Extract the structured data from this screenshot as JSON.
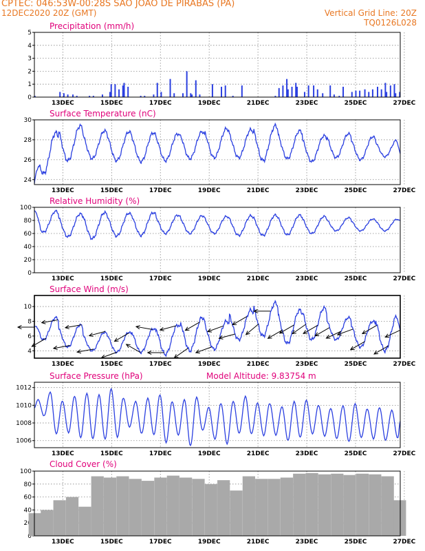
{
  "header": {
    "line1_left": "CPTEC:   046:53W-00:28S   SAO JOAO DE PIRABAS (PA)",
    "line2_left": "12DEC2020 20Z (GMT)",
    "line2_right": "Vertical Grid Line: 20Z",
    "line3_right": "TQ0126L028"
  },
  "colors": {
    "header": "#e87722",
    "title": "#e0007a",
    "line": "#2a3fe0",
    "bar": "#2a3fe0",
    "cloud": "#a9a9a9",
    "arrow": "#000000"
  },
  "x_ticks": [
    "13DEC",
    "15DEC",
    "17DEC",
    "19DEC",
    "21DEC",
    "23DEC",
    "25DEC",
    "27DEC"
  ],
  "chart_data": [
    {
      "type": "bar",
      "title": "Precipitation (mm/h)",
      "xlabel": "",
      "ylabel": "",
      "ylim": [
        0,
        5
      ],
      "yticks": [
        0,
        1,
        2,
        3,
        4,
        5
      ],
      "x": [
        "12DEC",
        "13DEC",
        "13DEC",
        "13DEC",
        "13DEC",
        "13DEC",
        "14DEC",
        "14DEC",
        "14DEC",
        "15DEC",
        "15DEC",
        "15DEC",
        "15DEC",
        "15DEC",
        "15DEC",
        "15DEC",
        "16DEC",
        "16DEC",
        "16DEC",
        "17DEC",
        "17DEC",
        "17DEC",
        "17DEC",
        "18DEC",
        "18DEC",
        "18DEC",
        "18DEC",
        "18DEC",
        "18DEC",
        "19DEC",
        "19DEC",
        "19DEC",
        "20DEC",
        "20DEC",
        "21DEC",
        "22DEC",
        "22DEC",
        "22DEC",
        "22DEC",
        "22DEC",
        "22DEC",
        "22DEC",
        "23DEC",
        "23DEC",
        "23DEC",
        "23DEC",
        "23DEC",
        "24DEC",
        "24DEC",
        "24DEC",
        "24DEC",
        "25DEC",
        "25DEC",
        "25DEC",
        "25DEC",
        "25DEC",
        "25DEC",
        "26DEC",
        "26DEC",
        "26DEC",
        "26DEC",
        "26DEC",
        "26DEC",
        "26DEC",
        "27DEC"
      ],
      "values": [
        0.1,
        0.2,
        0.1,
        0.3,
        0.2,
        0.4,
        0.1,
        0.2,
        0.1,
        0.9,
        0.4,
        0.6,
        0.8,
        1.0,
        1.1,
        1.0,
        0.1,
        0.2,
        0.1,
        0.3,
        0.4,
        1.4,
        1.1,
        0.3,
        0.2,
        2.0,
        1.3,
        0.3,
        0.2,
        0.9,
        1.0,
        0.8,
        0.1,
        0.9,
        0.1,
        1.4,
        1.1,
        0.9,
        0.8,
        0.7,
        0.6,
        0.8,
        0.9,
        0.6,
        0.4,
        0.9,
        0.3,
        0.2,
        0.8,
        0.9,
        0.1,
        0.6,
        0.5,
        0.4,
        0.5,
        0.6,
        0.4,
        1.1,
        1.0,
        0.6,
        0.9,
        0.8,
        0.4,
        0.3,
        0.4
      ]
    },
    {
      "type": "line",
      "title": "Surface Temperature (nC)",
      "xlabel": "",
      "ylabel": "",
      "ylim": [
        23.5,
        30
      ],
      "yticks": [
        24,
        26,
        28,
        30
      ],
      "daily_max": [
        28.7,
        29.4,
        28.9,
        28.8,
        28.7,
        28.6,
        28.8,
        29.1,
        29.0,
        29.4,
        28.9,
        28.4,
        28.6,
        28.3,
        28.0
      ],
      "daily_min": [
        24.6,
        25.9,
        26.1,
        25.9,
        25.8,
        25.9,
        26.1,
        26.2,
        26.2,
        25.9,
        26.1,
        25.8,
        26.2,
        26.0,
        26.3
      ],
      "start_value": 23.6,
      "end_value": 26.6
    },
    {
      "type": "line",
      "title": "Relative Humidity (%)",
      "xlabel": "",
      "ylabel": "",
      "ylim": [
        0,
        100
      ],
      "yticks": [
        0,
        20,
        40,
        60,
        80,
        100
      ],
      "daily_max": [
        94,
        90,
        92,
        91,
        92,
        88,
        87,
        86,
        87,
        88,
        88,
        86,
        84,
        82,
        82
      ],
      "daily_min": [
        62,
        55,
        52,
        56,
        57,
        60,
        60,
        60,
        57,
        57,
        58,
        60,
        64,
        64,
        64
      ],
      "start_value": 95,
      "end_value": 80
    },
    {
      "type": "line",
      "title": "Surface Wind (m/s)",
      "xlabel": "",
      "ylabel": "",
      "ylim": [
        3,
        11.5
      ],
      "yticks": [
        4,
        6,
        8,
        10
      ],
      "daily_max": [
        8.5,
        7.5,
        6.5,
        6.5,
        7.0,
        7.5,
        8.5,
        8.0,
        9.5,
        10.5,
        9.5,
        9.8,
        8.5,
        8.0,
        8.8
      ],
      "daily_min": [
        5.5,
        4.5,
        4.0,
        3.8,
        3.8,
        3.5,
        4.0,
        4.2,
        5.5,
        6.0,
        5.0,
        5.5,
        5.5,
        4.5,
        4.0
      ],
      "start_value": 7.2,
      "end_value": 6.8,
      "wind_directions_deg": [
        90,
        60,
        80,
        80,
        80,
        80,
        75,
        70,
        60,
        120,
        100,
        90,
        75,
        55,
        60,
        70,
        70,
        75,
        60,
        50,
        90,
        60,
        60,
        55,
        60,
        60,
        65,
        70,
        60,
        60,
        60,
        65
      ]
    },
    {
      "type": "line",
      "title": "Surface Pressure (hPa)",
      "annotation": "Model Altitude: 9.83754  m",
      "xlabel": "",
      "ylabel": "",
      "ylim": [
        1005.2,
        1012.6
      ],
      "yticks": [
        1006,
        1008,
        1010,
        1012
      ],
      "peaks": [
        1010.6,
        1011.5,
        1010.5,
        1011.0,
        1011.3,
        1011.2,
        1011.9,
        1010.8,
        1010.4,
        1010.8,
        1011.2,
        1010.4,
        1010.6,
        1010.9,
        1009.8,
        1010.2,
        1010.4,
        1011.0,
        1010.3,
        1010.2,
        1009.8,
        1010.4,
        1010.6,
        1010.0,
        1009.6,
        1009.9,
        1010.2,
        1009.6,
        1009.7,
        1009.4
      ],
      "troughs": [
        1008.8,
        1006.8,
        1006.9,
        1006.3,
        1006.2,
        1006.2,
        1006.4,
        1007.5,
        1006.8,
        1006.7,
        1005.8,
        1006.6,
        1005.4,
        1007.2,
        1006.2,
        1005.6,
        1006.8,
        1006.8,
        1006.6,
        1006.6,
        1006.0,
        1006.4,
        1006.8,
        1006.5,
        1006.2,
        1005.9,
        1006.4,
        1006.2,
        1006.0,
        1006.3
      ],
      "start_value": 1009.7,
      "end_value": 1008.2
    },
    {
      "type": "bar",
      "title": "Cloud Cover (%)",
      "xlabel": "",
      "ylabel": "",
      "ylim": [
        0,
        100
      ],
      "yticks": [
        0,
        20,
        40,
        60,
        80,
        100
      ],
      "x": [
        "12DEC",
        "13DEC",
        "13DEC",
        "14DEC",
        "14DEC",
        "15DEC",
        "15DEC",
        "16DEC",
        "16DEC",
        "17DEC",
        "17DEC",
        "18DEC",
        "18DEC",
        "19DEC",
        "19DEC",
        "20DEC",
        "20DEC",
        "21DEC",
        "21DEC",
        "22DEC",
        "22DEC",
        "23DEC",
        "23DEC",
        "24DEC",
        "24DEC",
        "25DEC",
        "25DEC",
        "26DEC",
        "26DEC",
        "27DEC"
      ],
      "values": [
        35,
        40,
        55,
        60,
        45,
        92,
        90,
        92,
        88,
        85,
        90,
        93,
        90,
        88,
        80,
        86,
        70,
        92,
        88,
        88,
        90,
        96,
        97,
        95,
        96,
        94,
        96,
        95,
        92,
        55
      ]
    }
  ]
}
